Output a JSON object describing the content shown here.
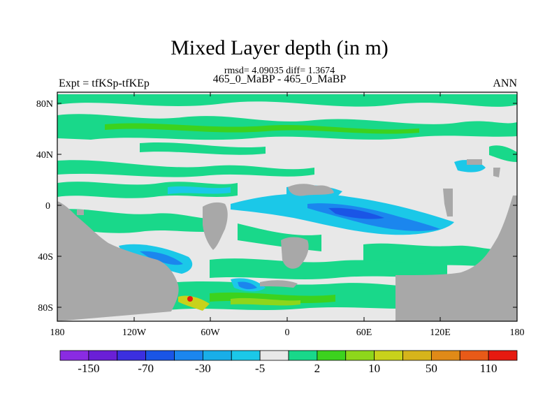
{
  "title": "Mixed Layer depth (in m)",
  "stats": "rmsd= 4.09035 diff= 1.3674",
  "expt_label": "Expt = tfKSp-tfKEp",
  "case_label": "465_0_MaBP - 465_0_MaBP",
  "season_label": "ANN",
  "lat_ticks": [
    "80N",
    "40N",
    "0",
    "40S",
    "80S"
  ],
  "lon_ticks": [
    "180",
    "120W",
    "60W",
    "0",
    "60E",
    "120E",
    "180"
  ],
  "colorbar": {
    "colors": [
      "#8a2be2",
      "#6a1fd6",
      "#3b2fe0",
      "#1a55e6",
      "#1b86ee",
      "#19aee8",
      "#1bc8e8",
      "#e8e8e8",
      "#19d88a",
      "#3cd21e",
      "#8ed61b",
      "#c8d21b",
      "#d6b41b",
      "#e08a18",
      "#e85a18",
      "#e61a10"
    ],
    "labels": [
      "-150",
      "-70",
      "-30",
      "-5",
      "2",
      "10",
      "50",
      "110"
    ]
  },
  "map_colors": {
    "land": "#a8a8a8",
    "zero": "#e8e8e8",
    "pos_small": "#19d88a",
    "pos_mid": "#3cd21e",
    "pos_high": "#8ed61b",
    "pos_yellow": "#c8d21b",
    "neg_small": "#1bc8e8",
    "neg_mid": "#1b86ee",
    "neg_strong": "#1a55e6",
    "red": "#e61a10"
  }
}
